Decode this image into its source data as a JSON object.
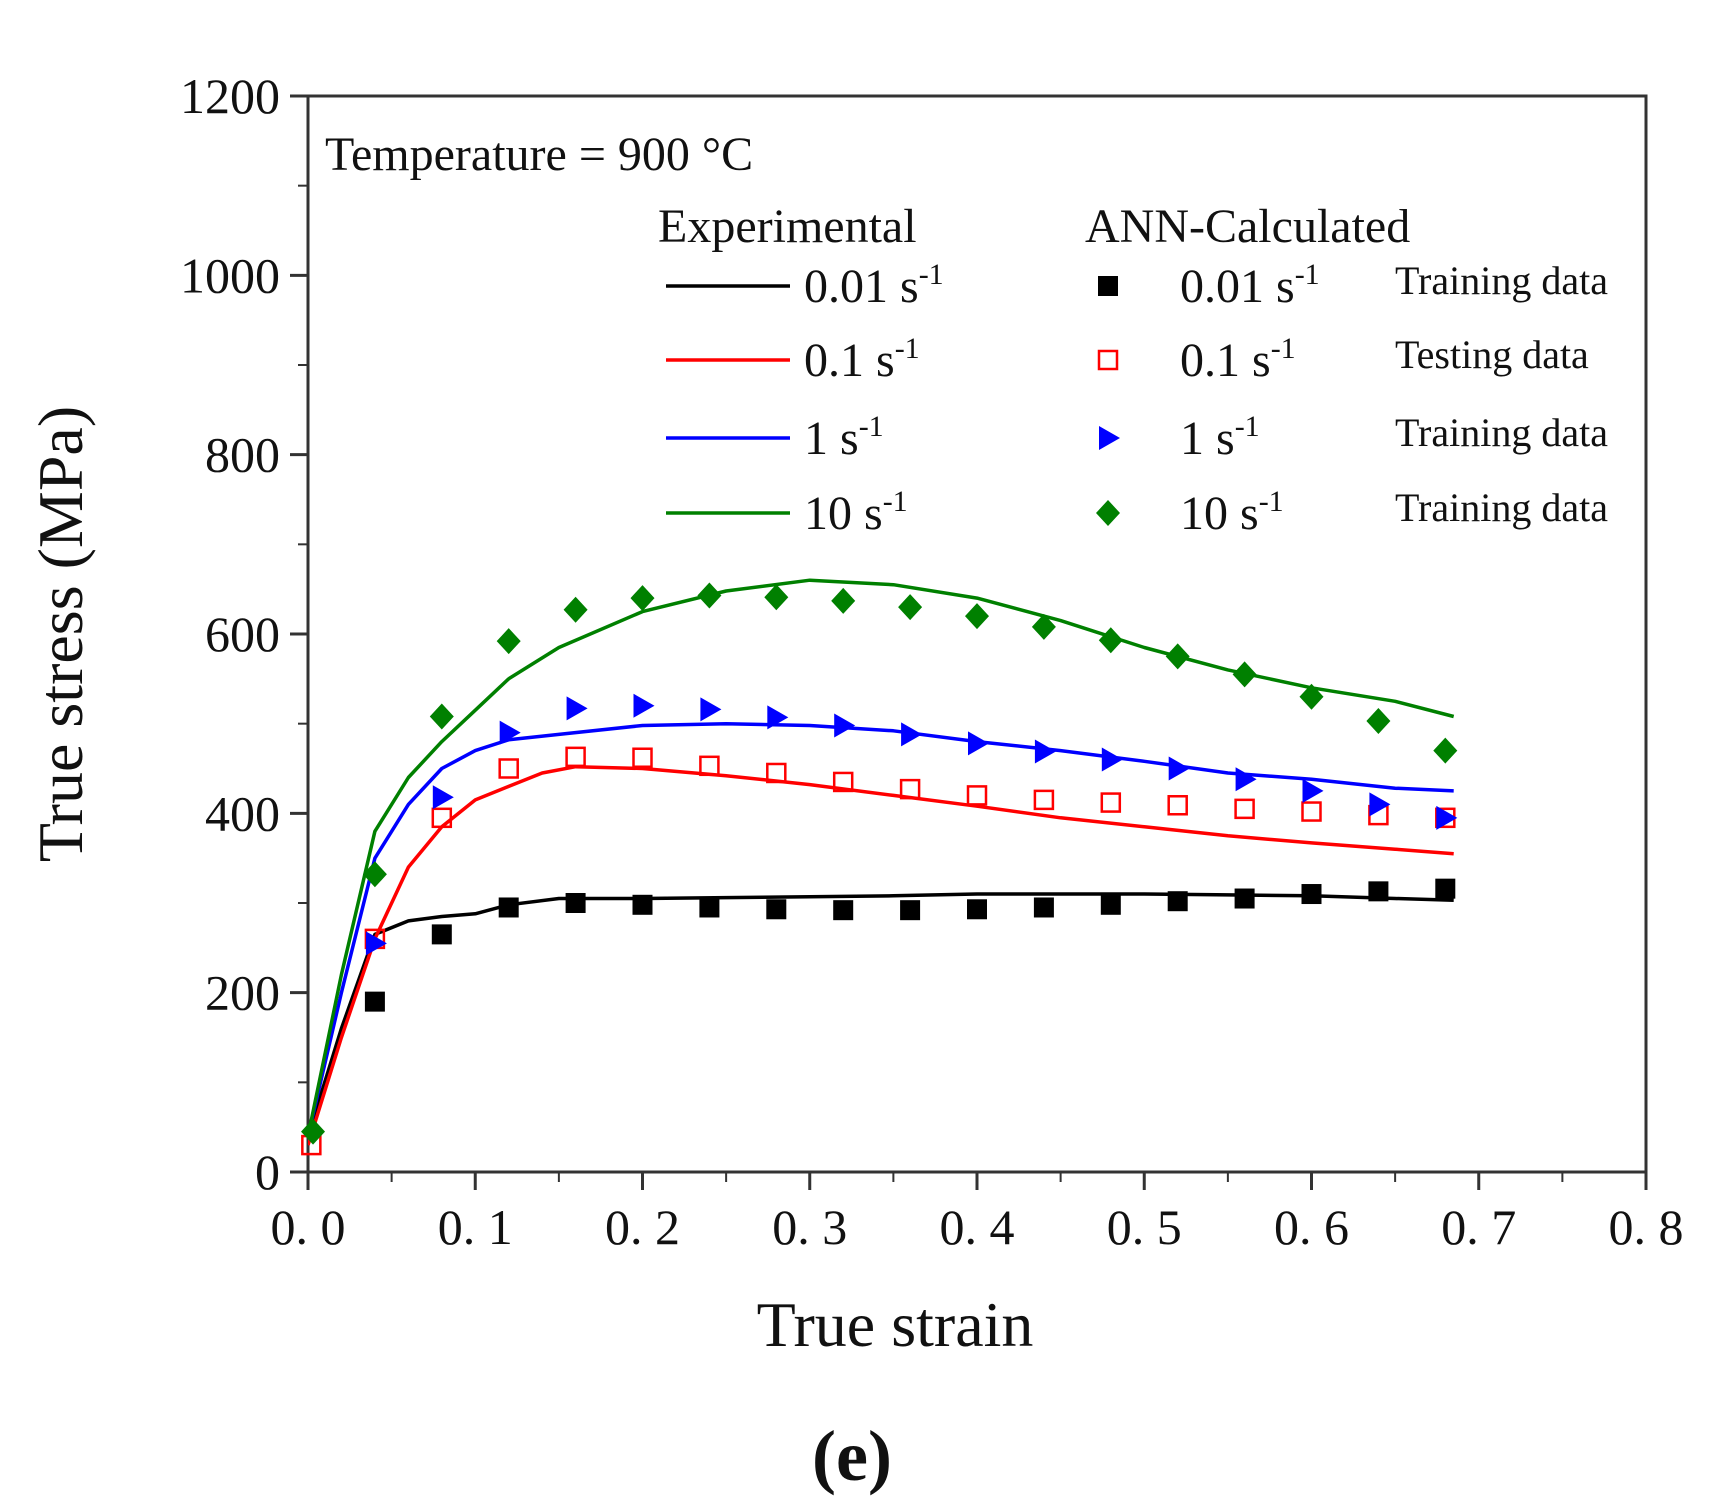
{
  "chart_data": {
    "type": "line",
    "xlabel": "True strain",
    "ylabel": "True stress (MPa)",
    "xlim": [
      0.0,
      0.8
    ],
    "ylim": [
      0,
      1200
    ],
    "xticks": [
      "0. 0",
      "0. 1",
      "0. 2",
      "0. 3",
      "0. 4",
      "0. 5",
      "0. 6",
      "0. 7",
      "0. 8"
    ],
    "yticks": [
      "0",
      "200",
      "400",
      "600",
      "800",
      "1000",
      "1200"
    ],
    "grid": false,
    "annotation": "Temperature = 900 °C",
    "panel_label": "(e)",
    "legend": {
      "experimental_header": "Experimental",
      "calculated_header": "ANN-Calculated",
      "rate_unit_exponent": "-1"
    },
    "experimental": [
      {
        "name": "0.01 s-1",
        "rate": "0.01 s",
        "color": "#000000",
        "points": [
          [
            0.0,
            40
          ],
          [
            0.02,
            160
          ],
          [
            0.04,
            265
          ],
          [
            0.06,
            280
          ],
          [
            0.08,
            285
          ],
          [
            0.1,
            288
          ],
          [
            0.12,
            298
          ],
          [
            0.15,
            305
          ],
          [
            0.2,
            305
          ],
          [
            0.25,
            306
          ],
          [
            0.3,
            307
          ],
          [
            0.35,
            308
          ],
          [
            0.4,
            310
          ],
          [
            0.45,
            310
          ],
          [
            0.5,
            310
          ],
          [
            0.55,
            309
          ],
          [
            0.6,
            308
          ],
          [
            0.65,
            305
          ],
          [
            0.685,
            303
          ]
        ]
      },
      {
        "name": "0.1 s-1",
        "rate": "0.1 s",
        "color": "#ff0000",
        "points": [
          [
            0.0,
            30
          ],
          [
            0.02,
            150
          ],
          [
            0.04,
            260
          ],
          [
            0.06,
            340
          ],
          [
            0.08,
            385
          ],
          [
            0.1,
            415
          ],
          [
            0.12,
            430
          ],
          [
            0.14,
            445
          ],
          [
            0.16,
            452
          ],
          [
            0.2,
            450
          ],
          [
            0.25,
            442
          ],
          [
            0.3,
            432
          ],
          [
            0.35,
            420
          ],
          [
            0.4,
            408
          ],
          [
            0.45,
            395
          ],
          [
            0.5,
            385
          ],
          [
            0.55,
            375
          ],
          [
            0.6,
            367
          ],
          [
            0.65,
            360
          ],
          [
            0.685,
            355
          ]
        ]
      },
      {
        "name": "1 s-1",
        "rate": "1 s",
        "color": "#0000ff",
        "points": [
          [
            0.0,
            40
          ],
          [
            0.02,
            200
          ],
          [
            0.04,
            350
          ],
          [
            0.06,
            410
          ],
          [
            0.08,
            450
          ],
          [
            0.1,
            470
          ],
          [
            0.12,
            482
          ],
          [
            0.15,
            488
          ],
          [
            0.2,
            498
          ],
          [
            0.25,
            500
          ],
          [
            0.3,
            498
          ],
          [
            0.35,
            492
          ],
          [
            0.4,
            480
          ],
          [
            0.45,
            470
          ],
          [
            0.5,
            458
          ],
          [
            0.55,
            445
          ],
          [
            0.6,
            438
          ],
          [
            0.65,
            428
          ],
          [
            0.685,
            425
          ]
        ]
      },
      {
        "name": "10 s-1",
        "rate": "10 s",
        "color": "#008000",
        "points": [
          [
            0.0,
            40
          ],
          [
            0.02,
            220
          ],
          [
            0.04,
            380
          ],
          [
            0.06,
            440
          ],
          [
            0.08,
            480
          ],
          [
            0.1,
            515
          ],
          [
            0.12,
            550
          ],
          [
            0.15,
            585
          ],
          [
            0.2,
            625
          ],
          [
            0.25,
            648
          ],
          [
            0.3,
            660
          ],
          [
            0.35,
            655
          ],
          [
            0.4,
            640
          ],
          [
            0.45,
            615
          ],
          [
            0.5,
            585
          ],
          [
            0.55,
            560
          ],
          [
            0.6,
            540
          ],
          [
            0.65,
            525
          ],
          [
            0.685,
            508
          ]
        ]
      }
    ],
    "ann_calculated": [
      {
        "name": "0.01 s-1",
        "rate": "0.01 s",
        "note": "Training data",
        "marker": "square-filled",
        "color": "#000000",
        "points": [
          [
            0.04,
            190
          ],
          [
            0.08,
            265
          ],
          [
            0.12,
            295
          ],
          [
            0.16,
            300
          ],
          [
            0.2,
            298
          ],
          [
            0.24,
            295
          ],
          [
            0.28,
            293
          ],
          [
            0.32,
            292
          ],
          [
            0.36,
            292
          ],
          [
            0.4,
            293
          ],
          [
            0.44,
            295
          ],
          [
            0.48,
            298
          ],
          [
            0.52,
            302
          ],
          [
            0.56,
            305
          ],
          [
            0.6,
            310
          ],
          [
            0.64,
            313
          ],
          [
            0.68,
            316
          ]
        ]
      },
      {
        "name": "0.1 s-1",
        "rate": "0.1 s",
        "note": "Testing data",
        "marker": "square-open",
        "color": "#ff0000",
        "points": [
          [
            0.002,
            30
          ],
          [
            0.04,
            260
          ],
          [
            0.08,
            395
          ],
          [
            0.12,
            450
          ],
          [
            0.16,
            463
          ],
          [
            0.2,
            462
          ],
          [
            0.24,
            453
          ],
          [
            0.28,
            445
          ],
          [
            0.32,
            435
          ],
          [
            0.36,
            427
          ],
          [
            0.4,
            420
          ],
          [
            0.44,
            415
          ],
          [
            0.48,
            412
          ],
          [
            0.52,
            409
          ],
          [
            0.56,
            405
          ],
          [
            0.6,
            402
          ],
          [
            0.64,
            398
          ],
          [
            0.68,
            395
          ]
        ]
      },
      {
        "name": "1 s-1",
        "rate": "1 s",
        "note": "Training data",
        "marker": "triangle-right",
        "color": "#0000ff",
        "points": [
          [
            0.04,
            255
          ],
          [
            0.08,
            418
          ],
          [
            0.12,
            490
          ],
          [
            0.16,
            517
          ],
          [
            0.2,
            520
          ],
          [
            0.24,
            516
          ],
          [
            0.28,
            507
          ],
          [
            0.32,
            498
          ],
          [
            0.36,
            488
          ],
          [
            0.4,
            478
          ],
          [
            0.44,
            469
          ],
          [
            0.48,
            460
          ],
          [
            0.52,
            450
          ],
          [
            0.56,
            438
          ],
          [
            0.6,
            425
          ],
          [
            0.64,
            410
          ],
          [
            0.68,
            395
          ]
        ]
      },
      {
        "name": "10 s-1",
        "rate": "10 s",
        "note": "Training data",
        "marker": "diamond",
        "color": "#008000",
        "points": [
          [
            0.003,
            45
          ],
          [
            0.04,
            332
          ],
          [
            0.08,
            508
          ],
          [
            0.12,
            592
          ],
          [
            0.16,
            627
          ],
          [
            0.2,
            640
          ],
          [
            0.24,
            643
          ],
          [
            0.28,
            641
          ],
          [
            0.32,
            637
          ],
          [
            0.36,
            630
          ],
          [
            0.4,
            620
          ],
          [
            0.44,
            608
          ],
          [
            0.48,
            593
          ],
          [
            0.52,
            575
          ],
          [
            0.56,
            555
          ],
          [
            0.6,
            530
          ],
          [
            0.64,
            503
          ],
          [
            0.68,
            470
          ]
        ]
      }
    ]
  }
}
